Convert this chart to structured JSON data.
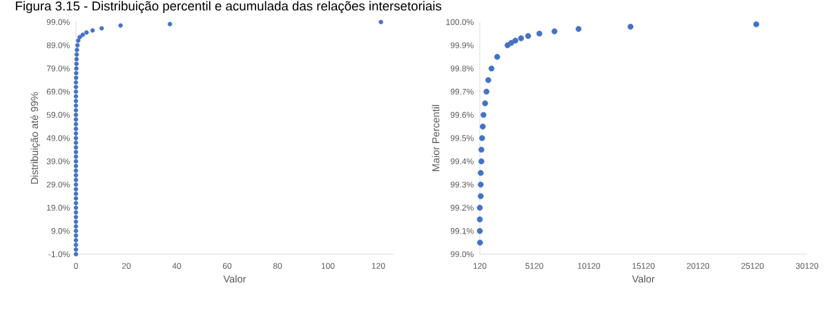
{
  "chart_data": [
    {
      "type": "scatter",
      "title": "Figura 3.15 - Distribuição percentil e acumulada das relações intersetoriais",
      "xlabel": "Valor",
      "ylabel": "Distribuição até 99%",
      "color": "#4472c4",
      "x": [
        0,
        0,
        0,
        0,
        0,
        0,
        0,
        0,
        0,
        0,
        0,
        0,
        0,
        0,
        0,
        0,
        0,
        0,
        0,
        0,
        0,
        0,
        0,
        0,
        0,
        0,
        0,
        0,
        0,
        0,
        0,
        0,
        0,
        0,
        0,
        0,
        0,
        0,
        0.05,
        0.1,
        0.15,
        0.2,
        0.25,
        0.3,
        0.4,
        0.6,
        0.9,
        1.5,
        2.7,
        4.2,
        6.6,
        10.2,
        17.7,
        37.3,
        121
      ],
      "values": [
        -1,
        1,
        3,
        5,
        7,
        9,
        11,
        13,
        15,
        17,
        19,
        21,
        23,
        25,
        27,
        29,
        31,
        33,
        35,
        37,
        39,
        41,
        43,
        45,
        47,
        49,
        51,
        53,
        55,
        57,
        59,
        61,
        63,
        65,
        67,
        69,
        71,
        73,
        75,
        77,
        79,
        81,
        83,
        85,
        87,
        89,
        91,
        92.5,
        93.5,
        94.5,
        95.4,
        96.3,
        97.5,
        98.1,
        99.0
      ],
      "xlim": [
        0,
        126
      ],
      "xticks": [
        0,
        20,
        40,
        60,
        80,
        100,
        120
      ],
      "ylim": [
        -1,
        99
      ],
      "yticks": [
        {
          "value": -1,
          "label": "-1.0%"
        },
        {
          "value": 9,
          "label": "9.0%"
        },
        {
          "value": 19,
          "label": "19.0%"
        },
        {
          "value": 29,
          "label": "29.0%"
        },
        {
          "value": 39,
          "label": "39.0%"
        },
        {
          "value": 49,
          "label": "49.0%"
        },
        {
          "value": 59,
          "label": "59.0%"
        },
        {
          "value": 69,
          "label": "69.0%"
        },
        {
          "value": 79,
          "label": "79.0%"
        },
        {
          "value": 89,
          "label": "89.0%"
        },
        {
          "value": 99,
          "label": "99.0%"
        }
      ]
    },
    {
      "type": "scatter",
      "xlabel": "Valor",
      "ylabel": "Maior Percentil",
      "color": "#4472c4",
      "x": [
        139,
        120,
        120,
        120,
        202,
        202,
        202,
        265,
        265,
        330,
        393,
        456,
        604,
        731,
        895,
        1191,
        1715,
        2659,
        2998,
        3376,
        3900,
        4549,
        5580,
        6966,
        9171,
        13936,
        25463
      ],
      "values": [
        99.05,
        99.1,
        99.15,
        99.2,
        99.25,
        99.3,
        99.35,
        99.4,
        99.45,
        99.5,
        99.55,
        99.6,
        99.65,
        99.7,
        99.75,
        99.8,
        99.85,
        99.9,
        99.91,
        99.92,
        99.93,
        99.94,
        99.95,
        99.96,
        99.97,
        99.98,
        99.99
      ],
      "xlim": [
        120,
        30120
      ],
      "xticks": [
        120,
        5120,
        10120,
        15120,
        20120,
        25120,
        30120
      ],
      "ylim": [
        99.0,
        100.0
      ],
      "yticks": [
        {
          "value": 99.0,
          "label": "99.0%"
        },
        {
          "value": 99.1,
          "label": "99.1%"
        },
        {
          "value": 99.2,
          "label": "99.2%"
        },
        {
          "value": 99.3,
          "label": "99.3%"
        },
        {
          "value": 99.4,
          "label": "99.4%"
        },
        {
          "value": 99.5,
          "label": "99.5%"
        },
        {
          "value": 99.6,
          "label": "99.6%"
        },
        {
          "value": 99.7,
          "label": "99.7%"
        },
        {
          "value": 99.8,
          "label": "99.8%"
        },
        {
          "value": 99.9,
          "label": "99.9%"
        },
        {
          "value": 100.0,
          "label": "100.0%"
        }
      ]
    }
  ]
}
